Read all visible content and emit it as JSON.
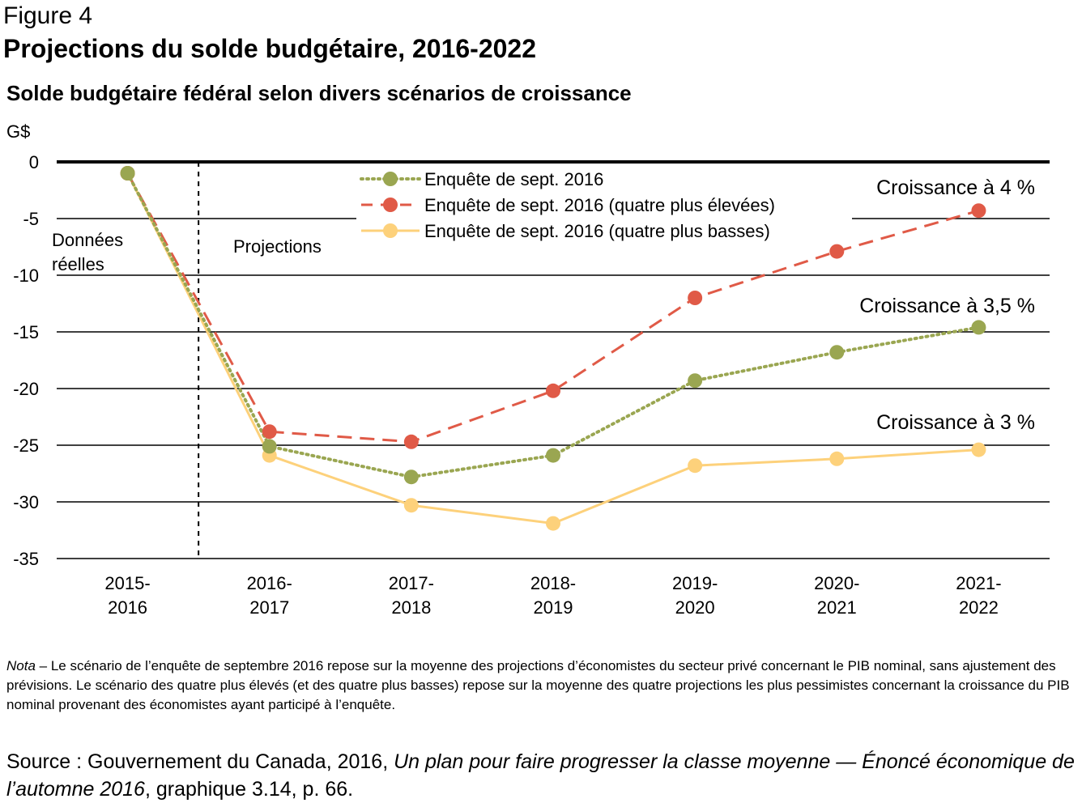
{
  "figure_label": "Figure 4",
  "figure_title": "Projections du solde budgétaire, 2016-2022",
  "subtitle": "Solde budgétaire fédéral selon divers scénarios de croissance",
  "chart_data": {
    "type": "line",
    "ylabel": "G$",
    "ylim": [
      -35,
      0
    ],
    "yticks": [
      0,
      -5,
      -10,
      -15,
      -20,
      -25,
      -30,
      -35
    ],
    "grid": true,
    "legend_placement": "top-center",
    "categories": [
      "2015-2016",
      "2016-2017",
      "2017-2018",
      "2018-2019",
      "2019-2020",
      "2020-2021",
      "2021-2022"
    ],
    "category_lines": [
      [
        "2015-",
        "2016"
      ],
      [
        "2016-",
        "2017"
      ],
      [
        "2017-",
        "2018"
      ],
      [
        "2018-",
        "2019"
      ],
      [
        "2019-",
        "2020"
      ],
      [
        "2020-",
        "2021"
      ],
      [
        "2021-",
        "2022"
      ]
    ],
    "series": [
      {
        "name": "Enquête de sept. 2016",
        "color": "#9aa651",
        "style": "dotted",
        "values": [
          -1.0,
          -25.1,
          -27.8,
          -25.9,
          -19.3,
          -16.8,
          -14.6
        ]
      },
      {
        "name": "Enquête de sept. 2016 (quatre plus élevées)",
        "color": "#e05a47",
        "style": "dashed",
        "values": [
          -1.0,
          -23.8,
          -24.7,
          -20.2,
          -12.0,
          -7.9,
          -4.3
        ]
      },
      {
        "name": "Enquête de sept. 2016 (quatre plus basses)",
        "color": "#fdd17b",
        "style": "solid",
        "values": [
          -1.0,
          -25.9,
          -30.3,
          -31.9,
          -26.8,
          -26.2,
          -25.4
        ]
      }
    ],
    "annotations": {
      "actual": [
        "Données",
        "réelles"
      ],
      "projections": "Projections",
      "growth_4": "Croissance à 4 %",
      "growth_35": "Croissance à 3,5 %",
      "growth_3": "Croissance à 3 %"
    }
  },
  "note": {
    "label": "Nota",
    "text": " – Le scénario de l’enquête de septembre 2016 repose sur la moyenne des projections d’économistes du secteur privé concernant le PIB nominal, sans ajustement des prévisions. Le scénario des quatre plus élevés (et des quatre plus basses) repose sur la moyenne des quatre projections les plus pessimistes concernant la croissance du PIB nominal provenant des économistes ayant participé à l’enquête."
  },
  "source": {
    "prefix": "Source : Gouvernement du Canada, 2016, ",
    "italic": "Un plan pour faire progresser la classe moyenne — Énoncé économique de l’automne 2016",
    "suffix": ", graphique 3.14, p. 66."
  }
}
